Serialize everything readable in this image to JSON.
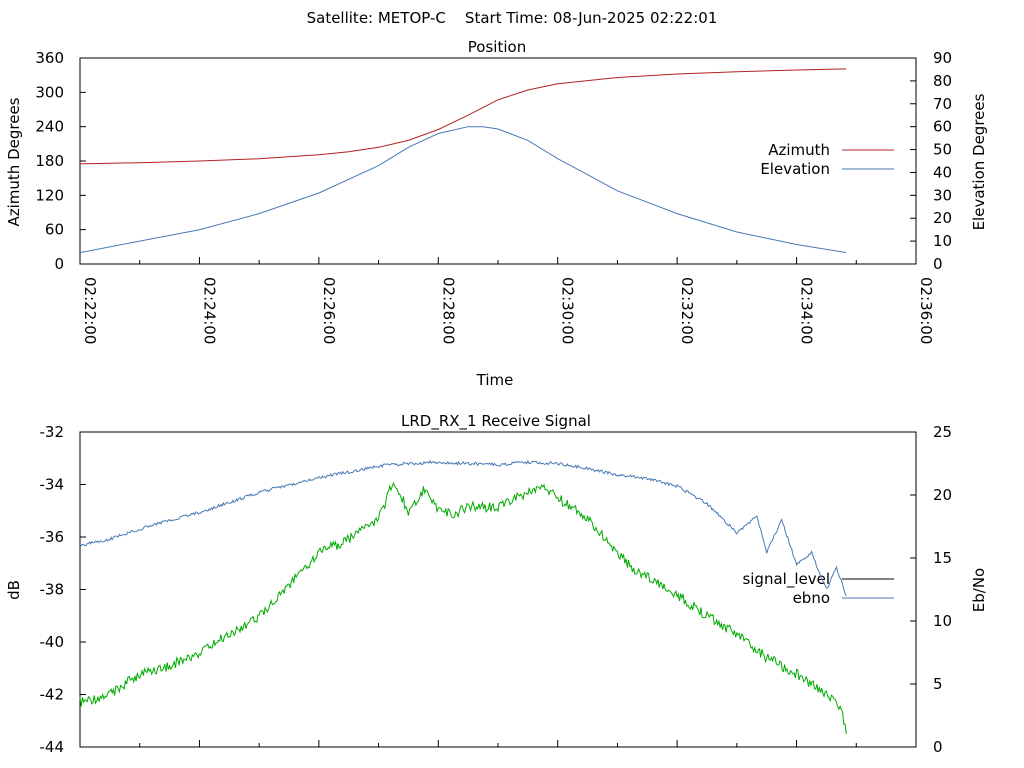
{
  "header": {
    "title": "Satellite: METOP-C    Start Time: 08-Jun-2025 02:22:01"
  },
  "chart_data": [
    {
      "type": "line",
      "title": "Position",
      "xlabel": "Time",
      "ylabel_left": "Azimuth Degrees",
      "ylabel_right": "Elevation Degrees",
      "x_ticks": [
        "02:22:00",
        "02:24:00",
        "02:26:00",
        "02:28:00",
        "02:30:00",
        "02:32:00",
        "02:34:00",
        "02:36:00"
      ],
      "x_range": [
        "02:22:00",
        "02:36:00"
      ],
      "ylim_left": [
        0,
        360
      ],
      "y_ticks_left": [
        0,
        60,
        120,
        180,
        240,
        300,
        360
      ],
      "ylim_right": [
        0,
        90
      ],
      "y_ticks_right": [
        0,
        10,
        20,
        30,
        40,
        50,
        60,
        70,
        80,
        90
      ],
      "grid": false,
      "legend_position": "right-middle",
      "series": [
        {
          "name": "Azimuth",
          "axis": "left",
          "color": "#b22222",
          "points": [
            [
              "02:22:00",
              175
            ],
            [
              "02:23:00",
              177
            ],
            [
              "02:24:00",
              180
            ],
            [
              "02:25:00",
              184
            ],
            [
              "02:26:00",
              191
            ],
            [
              "02:26:30",
              196
            ],
            [
              "02:27:00",
              204
            ],
            [
              "02:27:30",
              216
            ],
            [
              "02:28:00",
              235
            ],
            [
              "02:28:30",
              260
            ],
            [
              "02:29:00",
              287
            ],
            [
              "02:29:30",
              304
            ],
            [
              "02:30:00",
              315
            ],
            [
              "02:31:00",
              326
            ],
            [
              "02:32:00",
              332
            ],
            [
              "02:33:00",
              336
            ],
            [
              "02:34:00",
              339
            ],
            [
              "02:34:50",
              341
            ]
          ]
        },
        {
          "name": "Elevation",
          "axis": "right",
          "color": "#4a7ab5",
          "points": [
            [
              "02:22:00",
              5
            ],
            [
              "02:23:00",
              10
            ],
            [
              "02:24:00",
              15
            ],
            [
              "02:25:00",
              22
            ],
            [
              "02:26:00",
              31
            ],
            [
              "02:27:00",
              43
            ],
            [
              "02:27:30",
              51
            ],
            [
              "02:28:00",
              57
            ],
            [
              "02:28:30",
              60
            ],
            [
              "02:28:45",
              60
            ],
            [
              "02:29:00",
              59
            ],
            [
              "02:29:30",
              54
            ],
            [
              "02:30:00",
              46
            ],
            [
              "02:30:30",
              39
            ],
            [
              "02:31:00",
              32
            ],
            [
              "02:32:00",
              22
            ],
            [
              "02:33:00",
              14
            ],
            [
              "02:34:00",
              8.5
            ],
            [
              "02:34:50",
              5
            ]
          ]
        }
      ]
    },
    {
      "type": "line",
      "title": "LRD_RX_1 Receive Signal",
      "ylabel_left": "dB",
      "ylabel_right": "Eb/No",
      "x_range": [
        "02:22:00",
        "02:36:00"
      ],
      "ylim_left": [
        -44,
        -32
      ],
      "y_ticks_left": [
        -44,
        -42,
        -40,
        -38,
        -36,
        -34,
        -32
      ],
      "ylim_right": [
        0,
        25
      ],
      "y_ticks_right": [
        0,
        5,
        10,
        15,
        20,
        25
      ],
      "grid": false,
      "legend_position": "right-middle",
      "series": [
        {
          "name": "signal_level",
          "axis": "left",
          "color": "#00aa00",
          "points": [
            [
              "02:22:00",
              -42.3
            ],
            [
              "02:22:30",
              -42.0
            ],
            [
              "02:23:00",
              -41.2
            ],
            [
              "02:23:30",
              -40.9
            ],
            [
              "02:24:00",
              -40.4
            ],
            [
              "02:24:30",
              -39.7
            ],
            [
              "02:25:00",
              -39.0
            ],
            [
              "02:25:30",
              -37.8
            ],
            [
              "02:26:00",
              -36.6
            ],
            [
              "02:26:30",
              -36.1
            ],
            [
              "02:27:00",
              -35.3
            ],
            [
              "02:27:15",
              -33.9
            ],
            [
              "02:27:30",
              -35.0
            ],
            [
              "02:27:45",
              -34.2
            ],
            [
              "02:28:00",
              -34.9
            ],
            [
              "02:28:15",
              -35.2
            ],
            [
              "02:28:30",
              -34.8
            ],
            [
              "02:29:00",
              -34.9
            ],
            [
              "02:29:30",
              -34.3
            ],
            [
              "02:29:45",
              -34.1
            ],
            [
              "02:30:00",
              -34.5
            ],
            [
              "02:30:30",
              -35.3
            ],
            [
              "02:31:00",
              -36.6
            ],
            [
              "02:31:15",
              -37.2
            ],
            [
              "02:31:30",
              -37.5
            ],
            [
              "02:32:00",
              -38.2
            ],
            [
              "02:32:30",
              -39.0
            ],
            [
              "02:33:00",
              -39.7
            ],
            [
              "02:33:30",
              -40.6
            ],
            [
              "02:34:00",
              -41.2
            ],
            [
              "02:34:30",
              -42.0
            ],
            [
              "02:34:45",
              -42.6
            ],
            [
              "02:34:50",
              -43.5
            ]
          ]
        },
        {
          "name": "ebno",
          "axis": "right",
          "color": "#4a7ab5",
          "points": [
            [
              "02:22:00",
              16
            ],
            [
              "02:22:30",
              16.5
            ],
            [
              "02:23:00",
              17.3
            ],
            [
              "02:23:30",
              18
            ],
            [
              "02:24:00",
              18.6
            ],
            [
              "02:24:30",
              19.4
            ],
            [
              "02:25:00",
              20.2
            ],
            [
              "02:25:30",
              20.8
            ],
            [
              "02:26:00",
              21.4
            ],
            [
              "02:26:30",
              21.8
            ],
            [
              "02:27:00",
              22.3
            ],
            [
              "02:27:30",
              22.5
            ],
            [
              "02:28:00",
              22.6
            ],
            [
              "02:28:30",
              22.5
            ],
            [
              "02:29:00",
              22.4
            ],
            [
              "02:29:30",
              22.6
            ],
            [
              "02:30:00",
              22.5
            ],
            [
              "02:30:30",
              22.1
            ],
            [
              "02:31:00",
              21.6
            ],
            [
              "02:31:30",
              21.3
            ],
            [
              "02:32:00",
              20.7
            ],
            [
              "02:32:30",
              19.3
            ],
            [
              "02:33:00",
              17
            ],
            [
              "02:33:20",
              18.3
            ],
            [
              "02:33:30",
              15.5
            ],
            [
              "02:33:45",
              18
            ],
            [
              "02:34:00",
              14.5
            ],
            [
              "02:34:15",
              15.4
            ],
            [
              "02:34:30",
              12.5
            ],
            [
              "02:34:40",
              14.3
            ],
            [
              "02:34:50",
              12
            ]
          ]
        }
      ]
    }
  ]
}
